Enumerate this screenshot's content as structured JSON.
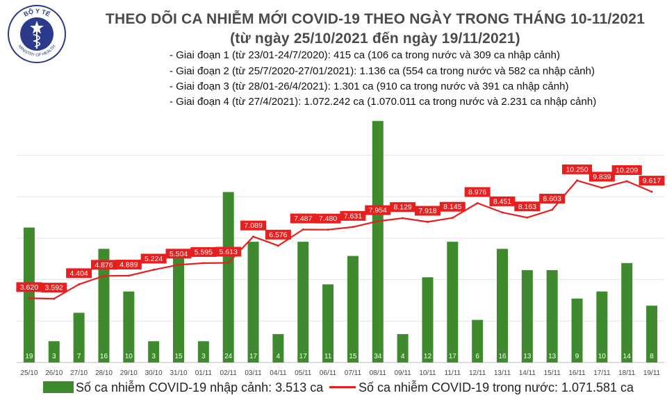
{
  "header": {
    "logo_text_top": "BỘ Y TẾ",
    "logo_text_bottom": "MINISTRY OF HEALTH",
    "title_line1": "THEO DÕI CA NHIỄM MỚI COVID-19 THEO NGÀY TRONG THÁNG 10-11/2021",
    "title_line2": "(từ ngày 25/10/2021 đến ngày 19/11/2021)",
    "notes": [
      "- Giai đoạn 1 (từ 23/01-24/7/2020): 415 ca (106 ca trong nước và 309 ca nhập cảnh)",
      "- Giai đoạn 2 (từ 25/7/2020-27/01/2021): 1.136 ca (554 ca trong nước và 582 ca nhập cảnh)",
      "- Giai đoạn 3 (từ 28/01-26/4/2021): 1.301 ca (910 ca trong nước và 391 ca nhập cảnh)",
      "- Giai đoạn 4 (từ 27/4/2021): 1.072.242 ca (1.070.011 ca trong nước và 2.231 ca nhập cảnh)"
    ]
  },
  "legend": {
    "bar_label": "Số ca nhiễm COVID-19 nhập cảnh: 3.513 ca",
    "line_label": "Số ca nhiễm COVID-19 trong nước: 1.071.581 ca"
  },
  "colors": {
    "bar": "#3f8a2e",
    "line": "#e81f1f",
    "title": "#4a4a4a",
    "logo": "#2b3a8c"
  },
  "chart_data": {
    "type": "bar+line",
    "categories": [
      "25/10",
      "26/10",
      "27/10",
      "28/10",
      "29/10",
      "30/10",
      "31/10",
      "01/11",
      "02/11",
      "03/11",
      "04/11",
      "05/11",
      "06/11",
      "07/11",
      "08/11",
      "09/11",
      "10/11",
      "11/11",
      "12/11",
      "13/11",
      "14/11",
      "15/11",
      "16/11",
      "17/11",
      "18/11",
      "19/11"
    ],
    "bar_values": [
      19,
      3,
      7,
      16,
      10,
      3,
      15,
      3,
      24,
      17,
      4,
      17,
      11,
      15,
      34,
      4,
      12,
      17,
      6,
      16,
      13,
      13,
      9,
      10,
      14,
      8
    ],
    "bar_labels": [
      "19",
      "3",
      "7",
      "16",
      "10",
      "3",
      "15",
      "3",
      "24",
      "17",
      "4",
      "17",
      "11",
      "15",
      "34",
      "4",
      "12",
      "17",
      "6",
      "16",
      "13",
      "13",
      "9",
      "10",
      "14",
      "8"
    ],
    "line_values": [
      3620,
      3592,
      4404,
      4876,
      4889,
      5224,
      5504,
      5595,
      5613,
      7089,
      6576,
      7487,
      7480,
      7631,
      7954,
      8129,
      7918,
      8145,
      8976,
      8451,
      8163,
      8603,
      10250,
      9839,
      10209,
      9617
    ],
    "line_labels": [
      "3.620",
      "3.592",
      "4.404",
      "4.876",
      "4.889",
      "5.224",
      "5.504",
      "5.595",
      "5.613",
      "7.089",
      "6.576",
      "7.487",
      "7.480",
      "7.631",
      "7.954",
      "8.129",
      "7.918",
      "8.145",
      "8.976",
      "8.451",
      "8.163",
      "8.603",
      "10.250",
      "9.839",
      "10.209",
      "9.617"
    ],
    "y_ticks": [
      "",
      "",
      "",
      "",
      ""
    ],
    "bar_axis_max": 35,
    "line_axis_min": 0,
    "line_axis_max": 14000,
    "legend_position": "bottom"
  }
}
